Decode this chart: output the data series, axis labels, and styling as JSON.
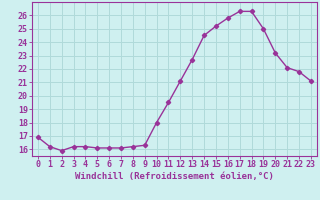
{
  "x": [
    0,
    1,
    2,
    3,
    4,
    5,
    6,
    7,
    8,
    9,
    10,
    11,
    12,
    13,
    14,
    15,
    16,
    17,
    18,
    19,
    20,
    21,
    22,
    23
  ],
  "y": [
    16.9,
    16.2,
    15.9,
    16.2,
    16.2,
    16.1,
    16.1,
    16.1,
    16.2,
    16.3,
    18.0,
    19.5,
    21.1,
    22.7,
    24.5,
    25.2,
    25.8,
    26.3,
    26.3,
    25.0,
    23.2,
    22.1,
    21.8,
    21.1
  ],
  "line_color": "#993399",
  "marker": "D",
  "markersize": 2.2,
  "linewidth": 1.0,
  "background_color": "#cff0f0",
  "grid_color": "#b0dada",
  "xlabel": "Windchill (Refroidissement éolien,°C)",
  "xlim": [
    -0.5,
    23.5
  ],
  "ylim": [
    15.5,
    27.0
  ],
  "yticks": [
    16,
    17,
    18,
    19,
    20,
    21,
    22,
    23,
    24,
    25,
    26
  ],
  "xticks": [
    0,
    1,
    2,
    3,
    4,
    5,
    6,
    7,
    8,
    9,
    10,
    11,
    12,
    13,
    14,
    15,
    16,
    17,
    18,
    19,
    20,
    21,
    22,
    23
  ],
  "tick_color": "#993399",
  "label_color": "#993399",
  "axis_color": "#993399",
  "fontsize_xlabel": 6.5,
  "fontsize_ticks": 6.0
}
